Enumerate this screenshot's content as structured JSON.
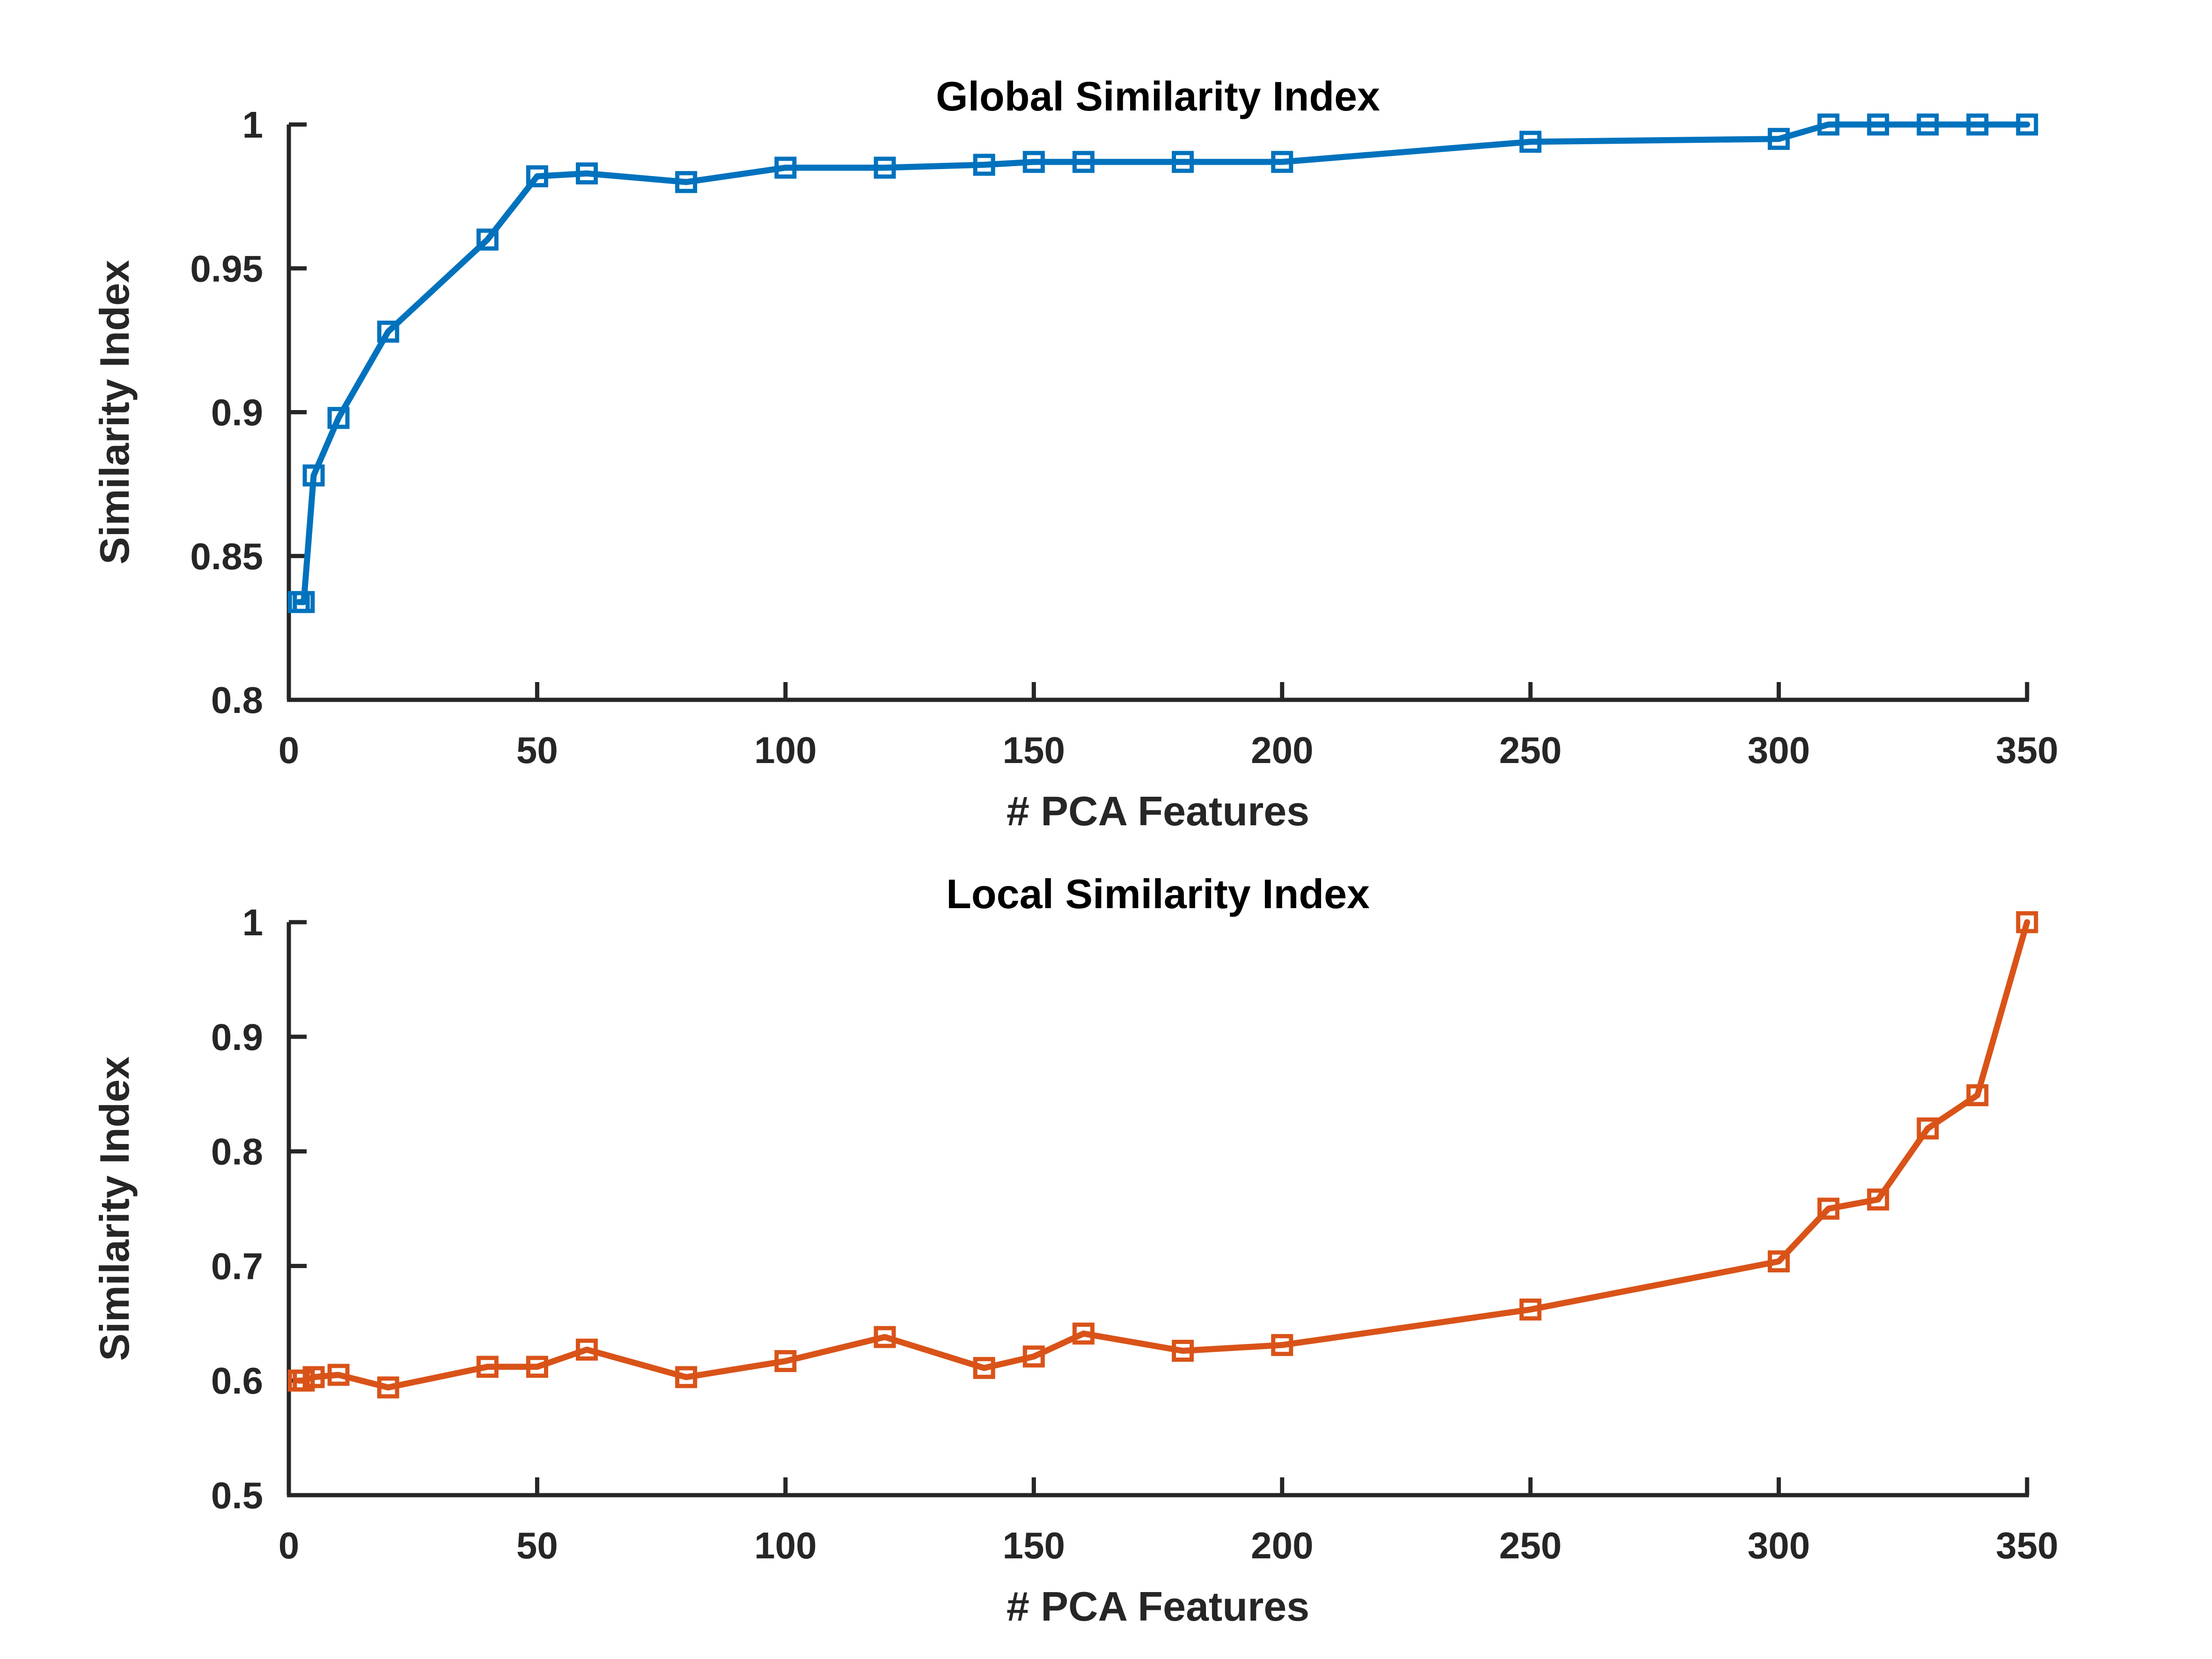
{
  "chart_data": [
    {
      "type": "line",
      "title": "Global Similarity Index",
      "xlabel": "# PCA Features",
      "ylabel": "Similarity Index",
      "xlim": [
        0,
        350
      ],
      "ylim": [
        0.8,
        1
      ],
      "xticks": [
        "0",
        "50",
        "100",
        "150",
        "200",
        "250",
        "300",
        "350"
      ],
      "yticks": [
        "0.8",
        "0.85",
        "0.9",
        "0.95",
        "1"
      ],
      "grid": false,
      "series": [
        {
          "color": "#0072BD",
          "marker": "square",
          "x": [
            2,
            3,
            5,
            10,
            20,
            40,
            50,
            60,
            80,
            100,
            120,
            140,
            150,
            160,
            180,
            200,
            250,
            300,
            310,
            320,
            330,
            340,
            350
          ],
          "y": [
            0.834,
            0.834,
            0.878,
            0.898,
            0.928,
            0.96,
            0.982,
            0.983,
            0.98,
            0.985,
            0.985,
            0.986,
            0.987,
            0.987,
            0.987,
            0.987,
            0.994,
            0.995,
            1.0,
            1.0,
            1.0,
            1.0,
            1.0
          ]
        }
      ]
    },
    {
      "type": "line",
      "title": "Local Similarity Index",
      "xlabel": "# PCA Features",
      "ylabel": "Similarity Index",
      "xlim": [
        0,
        350
      ],
      "ylim": [
        0.5,
        1
      ],
      "xticks": [
        "0",
        "50",
        "100",
        "150",
        "200",
        "250",
        "300",
        "350"
      ],
      "yticks": [
        "0.5",
        "0.6",
        "0.7",
        "0.8",
        "0.9",
        "1"
      ],
      "grid": false,
      "series": [
        {
          "color": "#D95319",
          "marker": "square",
          "x": [
            2,
            3,
            5,
            10,
            20,
            40,
            50,
            60,
            80,
            100,
            120,
            140,
            150,
            160,
            180,
            200,
            250,
            300,
            310,
            320,
            330,
            340,
            350
          ],
          "y": [
            0.6,
            0.6,
            0.603,
            0.605,
            0.594,
            0.612,
            0.612,
            0.627,
            0.603,
            0.617,
            0.638,
            0.611,
            0.621,
            0.641,
            0.626,
            0.631,
            0.662,
            0.704,
            0.75,
            0.758,
            0.82,
            0.849,
            1.0
          ]
        }
      ]
    }
  ]
}
